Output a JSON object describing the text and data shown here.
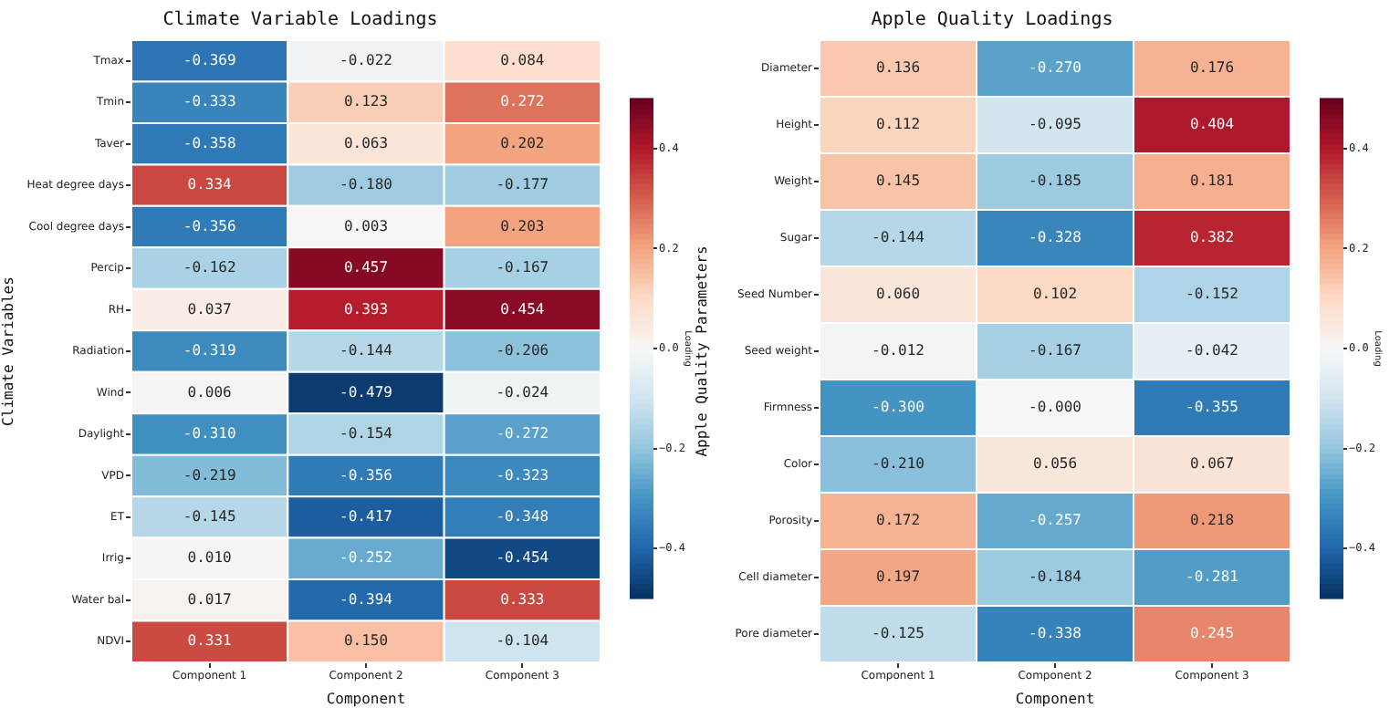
{
  "chart_data": [
    {
      "type": "heatmap",
      "title": "Climate Variable Loadings",
      "xlabel": "Component",
      "ylabel": "Climate Variables",
      "clabel": "Loading",
      "categories": [
        "Component 1",
        "Component 2",
        "Component 3"
      ],
      "y_categories": [
        "Tmax",
        "Tmin",
        "Taver",
        "Heat degree days",
        "Cool degree days",
        "Percip",
        "RH",
        "Radiation",
        "Wind",
        "Daylight",
        "VPD",
        "ET",
        "Irrig",
        "Water bal",
        "NDVI"
      ],
      "cells": [
        [
          -0.369,
          -0.022,
          0.084
        ],
        [
          -0.333,
          0.123,
          0.272
        ],
        [
          -0.358,
          0.063,
          0.202
        ],
        [
          0.334,
          -0.18,
          -0.177
        ],
        [
          -0.356,
          0.003,
          0.203
        ],
        [
          -0.162,
          0.457,
          -0.167
        ],
        [
          0.037,
          0.393,
          0.454
        ],
        [
          -0.319,
          -0.144,
          -0.206
        ],
        [
          0.006,
          -0.479,
          -0.024
        ],
        [
          -0.31,
          -0.154,
          -0.272
        ],
        [
          -0.219,
          -0.356,
          -0.323
        ],
        [
          -0.145,
          -0.417,
          -0.348
        ],
        [
          0.01,
          -0.252,
          -0.454
        ],
        [
          0.017,
          -0.394,
          0.333
        ],
        [
          0.331,
          0.15,
          -0.104
        ]
      ],
      "cell_labels": [
        [
          "-0.369",
          "-0.022",
          "0.084"
        ],
        [
          "-0.333",
          "0.123",
          "0.272"
        ],
        [
          "-0.358",
          "0.063",
          "0.202"
        ],
        [
          "0.334",
          "-0.180",
          "-0.177"
        ],
        [
          "-0.356",
          "0.003",
          "0.203"
        ],
        [
          "-0.162",
          "0.457",
          "-0.167"
        ],
        [
          "0.037",
          "0.393",
          "0.454"
        ],
        [
          "-0.319",
          "-0.144",
          "-0.206"
        ],
        [
          "0.006",
          "-0.479",
          "-0.024"
        ],
        [
          "-0.310",
          "-0.154",
          "-0.272"
        ],
        [
          "-0.219",
          "-0.356",
          "-0.323"
        ],
        [
          "-0.145",
          "-0.417",
          "-0.348"
        ],
        [
          "0.010",
          "-0.252",
          "-0.454"
        ],
        [
          "0.017",
          "-0.394",
          "0.333"
        ],
        [
          "0.331",
          "0.150",
          "-0.104"
        ]
      ],
      "clim": [
        -0.5,
        0.5
      ],
      "cticks": [
        {
          "value": -0.4,
          "label": "−0.4"
        },
        {
          "value": -0.2,
          "label": "−0.2"
        },
        {
          "value": 0,
          "label": "0.0"
        },
        {
          "value": 0.2,
          "label": "0.2"
        },
        {
          "value": 0.4,
          "label": "0.4"
        }
      ]
    },
    {
      "type": "heatmap",
      "title": "Apple Quality Loadings",
      "xlabel": "Component",
      "ylabel": "Apple Quality Parameters",
      "clabel": "Loading",
      "categories": [
        "Component 1",
        "Component 2",
        "Component 3"
      ],
      "y_categories": [
        "Diameter",
        "Height",
        "Weight",
        "Sugar",
        "Seed Number",
        "Seed weight",
        "Firmness",
        "Color",
        "Porosity",
        "Cell diameter",
        "Pore diameter"
      ],
      "cells": [
        [
          0.136,
          -0.27,
          0.176
        ],
        [
          0.112,
          -0.095,
          0.404
        ],
        [
          0.145,
          -0.185,
          0.181
        ],
        [
          -0.144,
          -0.328,
          0.382
        ],
        [
          0.06,
          0.102,
          -0.152
        ],
        [
          -0.012,
          -0.167,
          -0.042
        ],
        [
          -0.3,
          0,
          -0.355
        ],
        [
          -0.21,
          0.056,
          0.067
        ],
        [
          0.172,
          -0.257,
          0.218
        ],
        [
          0.197,
          -0.184,
          -0.281
        ],
        [
          -0.125,
          -0.338,
          0.245
        ]
      ],
      "cell_labels": [
        [
          "0.136",
          "-0.270",
          "0.176"
        ],
        [
          "0.112",
          "-0.095",
          "0.404"
        ],
        [
          "0.145",
          "-0.185",
          "0.181"
        ],
        [
          "-0.144",
          "-0.328",
          "0.382"
        ],
        [
          "0.060",
          "0.102",
          "-0.152"
        ],
        [
          "-0.012",
          "-0.167",
          "-0.042"
        ],
        [
          "-0.300",
          "-0.000",
          "-0.355"
        ],
        [
          "-0.210",
          "0.056",
          "0.067"
        ],
        [
          "0.172",
          "-0.257",
          "0.218"
        ],
        [
          "0.197",
          "-0.184",
          "-0.281"
        ],
        [
          "-0.125",
          "-0.338",
          "0.245"
        ]
      ],
      "clim": [
        -0.5,
        0.5
      ],
      "cticks": [
        {
          "value": -0.4,
          "label": "−0.4"
        },
        {
          "value": -0.2,
          "label": "−0.2"
        },
        {
          "value": 0,
          "label": "0.0"
        },
        {
          "value": 0.2,
          "label": "0.2"
        },
        {
          "value": 0.4,
          "label": "0.4"
        }
      ]
    }
  ]
}
